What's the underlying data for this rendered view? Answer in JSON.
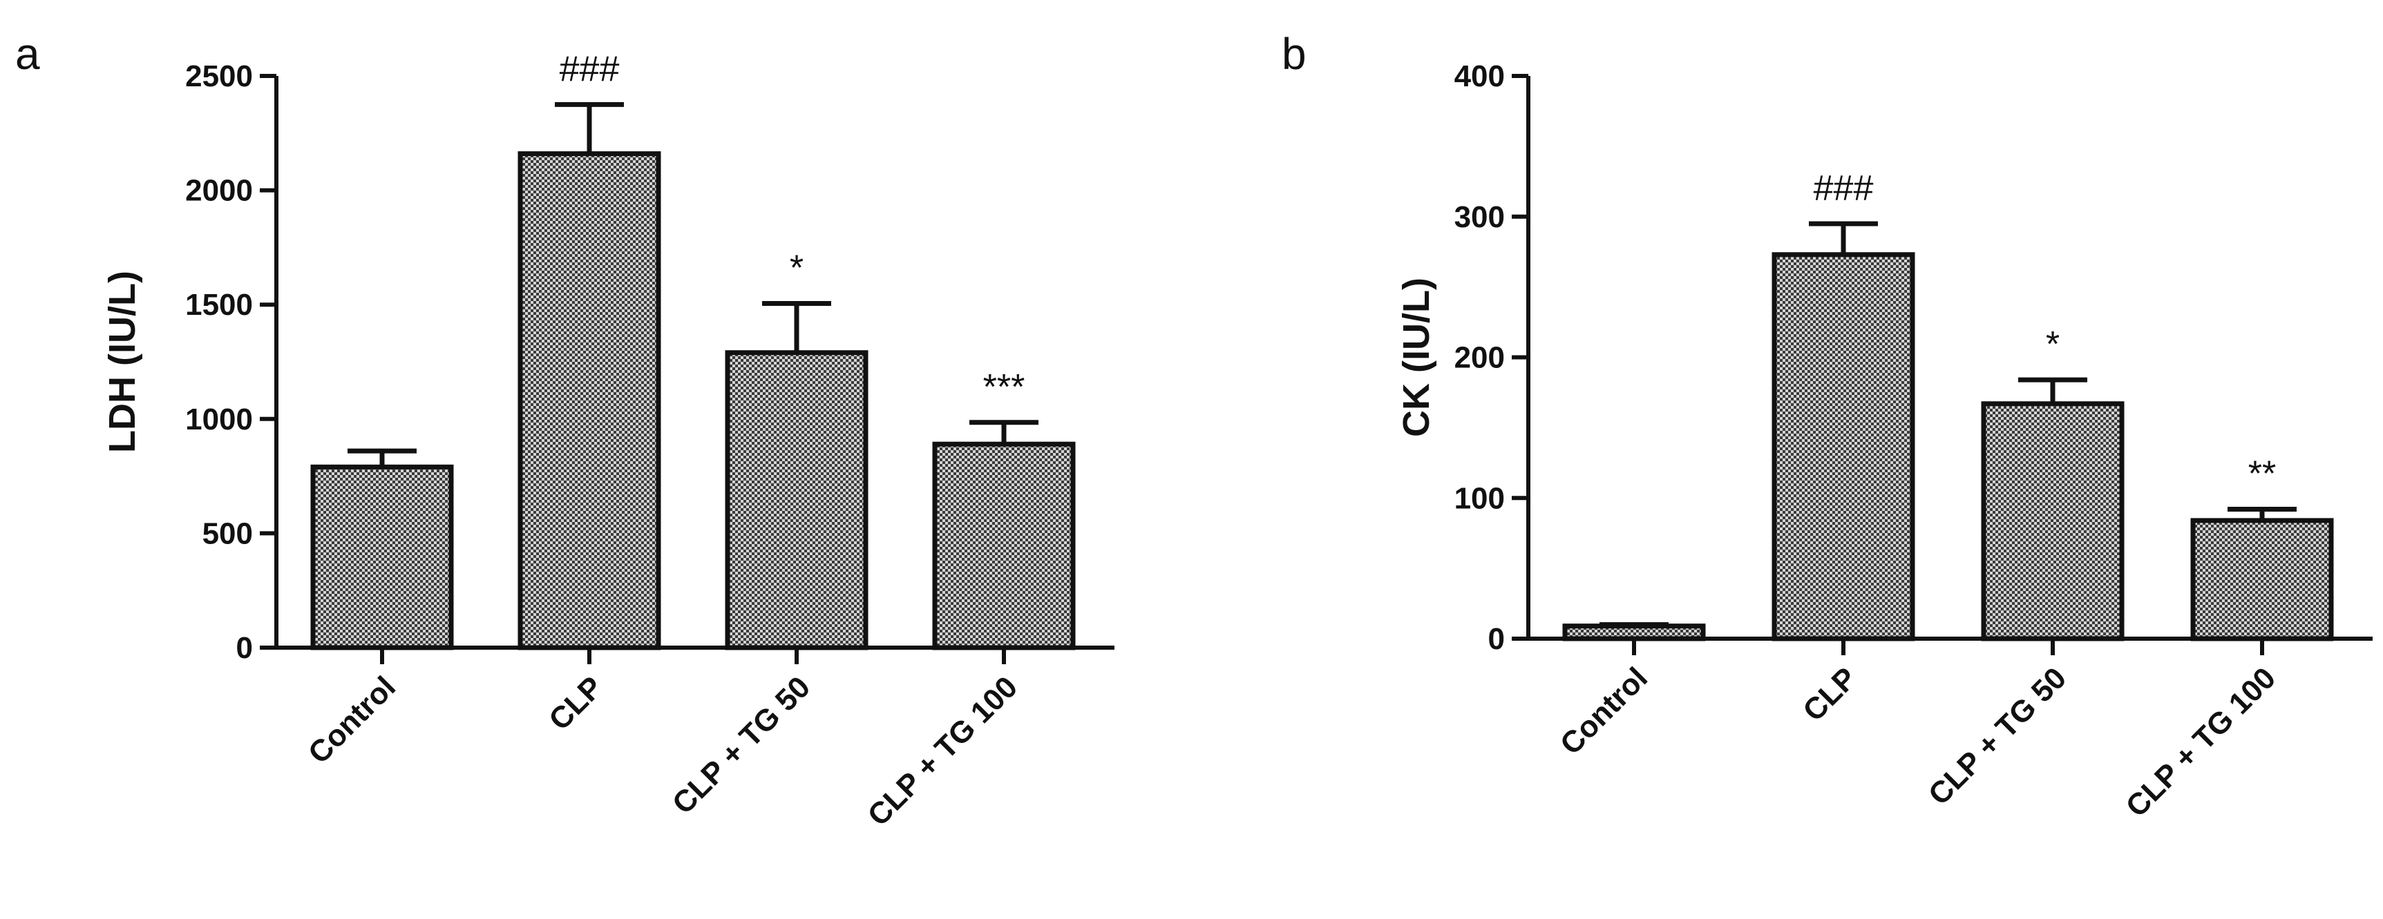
{
  "chart_data": [
    {
      "panel": "a",
      "type": "bar",
      "ylabel": "LDH (IU/L)",
      "ylim": [
        0,
        2500
      ],
      "yticks": [
        "0",
        "500",
        "1000",
        "1500",
        "2000",
        "2500"
      ],
      "categories": [
        "Control",
        "CLP",
        "CLP + TG 50",
        "CLP + TG 100"
      ],
      "values": [
        790,
        2160,
        1290,
        890
      ],
      "errors": [
        70,
        215,
        215,
        95
      ],
      "annotations": [
        "",
        "###",
        "*",
        "***"
      ]
    },
    {
      "panel": "b",
      "type": "bar",
      "ylabel": "CK (IU/L)",
      "ylim": [
        0,
        400
      ],
      "yticks": [
        "0",
        "100",
        "200",
        "300",
        "400"
      ],
      "categories": [
        "Control",
        "CLP",
        "CLP + TG 50",
        "CLP + TG 100"
      ],
      "values": [
        9,
        273,
        167,
        84
      ],
      "errors": [
        1,
        22,
        17,
        8
      ],
      "annotations": [
        "",
        "###",
        "*",
        "**"
      ]
    }
  ]
}
